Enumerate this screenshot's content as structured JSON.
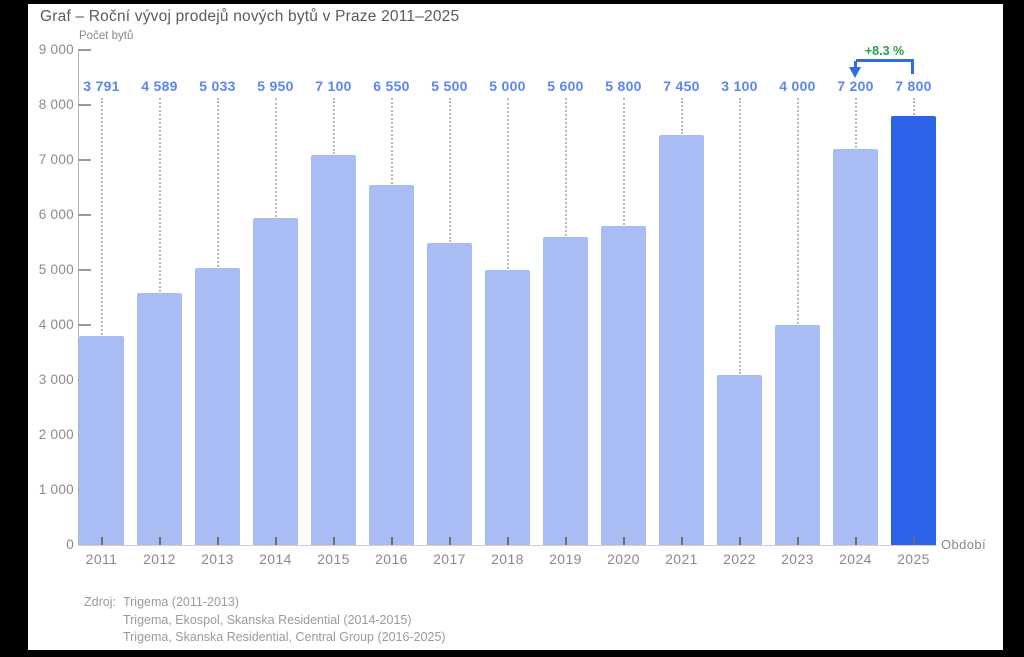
{
  "title": "Graf – Roční vývoj prodejů nových bytů v Praze 2011–2025",
  "chart_data": {
    "type": "bar",
    "categories": [
      "2011",
      "2012",
      "2013",
      "2014",
      "2015",
      "2016",
      "2017",
      "2018",
      "2019",
      "2020",
      "2021",
      "2022",
      "2023",
      "2024",
      "2025"
    ],
    "values": [
      3791,
      4589,
      5033,
      5950,
      7100,
      6550,
      5500,
      5000,
      5600,
      5800,
      7450,
      3100,
      4000,
      7200,
      7800
    ],
    "value_labels": [
      "3 791",
      "4 589",
      "5 033",
      "5 950",
      "7 100",
      "6 550",
      "5 500",
      "5 000",
      "5 600",
      "5 800",
      "7 450",
      "3 100",
      "4 000",
      "7 200",
      "7 800"
    ],
    "title": "Graf – Roční vývoj prodejů nových bytů v Praze 2011–2025",
    "ylabel": "Počet bytů",
    "xlabel": "Období",
    "ylim": [
      0,
      9000
    ],
    "ytick_step": 1000,
    "ytick_labels": [
      "0",
      "1 000",
      "2 000",
      "3 000",
      "4 000",
      "5 000",
      "6 000",
      "7 000",
      "8 000",
      "9 000"
    ],
    "grid": "off",
    "legend": "none",
    "highlight_index": 14,
    "annotation": {
      "text": "+8.3 %",
      "from_category": "2024",
      "to_category": "2025",
      "from_index": 13,
      "to_index": 14
    },
    "colors": {
      "bar": "#a9bcf4",
      "bar_highlight": "#2d63e8",
      "value_label": "#5b86ee",
      "annotation_text": "#27a244",
      "annotation_arrow": "#2f6ce6"
    }
  },
  "source": {
    "prefix": "Zdroj:",
    "lines": [
      "Trigema (2011-2013)",
      "Trigema, Ekospol, Skanska Residential (2014-2015)",
      "Trigema, Skanska Residential, Central Group (2016-2025)"
    ]
  }
}
